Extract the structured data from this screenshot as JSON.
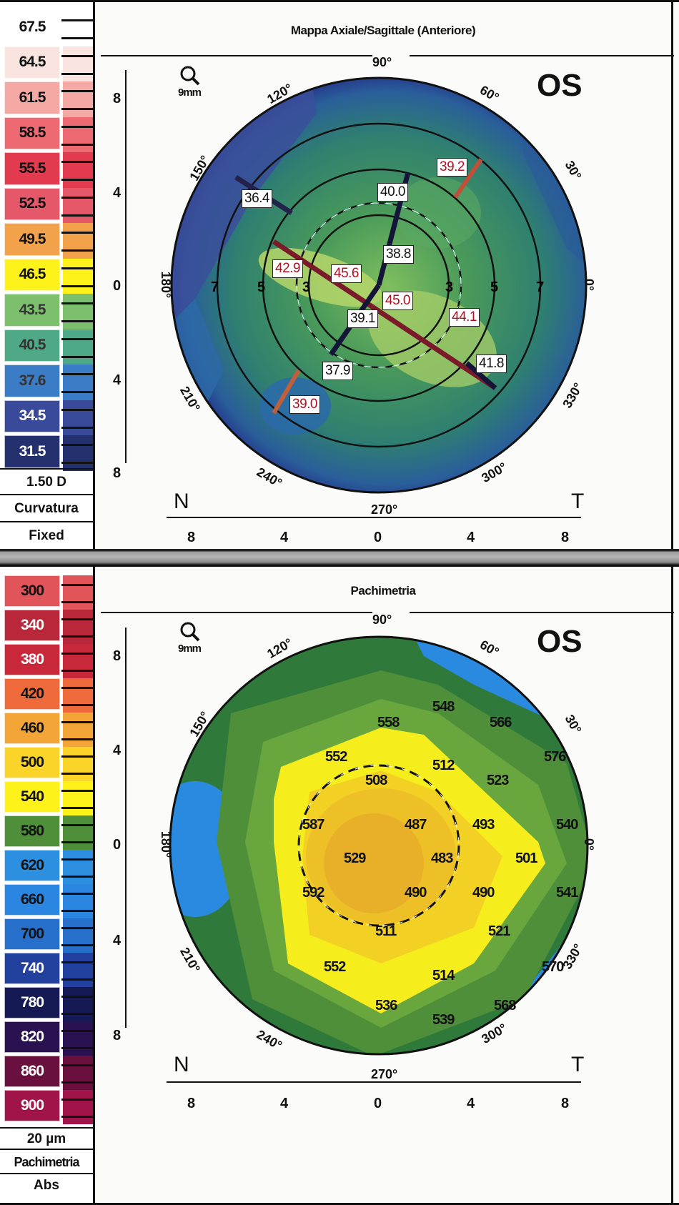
{
  "chart_data": [
    {
      "type": "heatmap",
      "title": "Mappa Axiale/Sagittale (Anteriore)",
      "eye": "OS",
      "zoom_label": "9mm",
      "scale": {
        "step": "1.50 D",
        "mode": "Curvatura",
        "scale_type": "Fixed",
        "ticks": [
          "67.5",
          "64.5",
          "61.5",
          "58.5",
          "55.5",
          "52.5",
          "49.5",
          "46.5",
          "43.5",
          "40.5",
          "37.6",
          "34.5",
          "31.5"
        ]
      },
      "angle_labels": [
        "90°",
        "120°",
        "150°",
        "180°",
        "210°",
        "240°",
        "270°",
        "300°",
        "330°",
        "0°",
        "30°",
        "60°"
      ],
      "ring_labels": [
        "7",
        "5",
        "3",
        "3",
        "5",
        "7"
      ],
      "axis_y_ticks": [
        "8",
        "4",
        "0",
        "4",
        "8"
      ],
      "axis_x_ticks": [
        "8",
        "4",
        "0",
        "4",
        "8"
      ],
      "orientation": {
        "left": "N",
        "right": "T"
      },
      "meridian_values": [
        {
          "label": "36.4",
          "color": "black"
        },
        {
          "label": "40.0",
          "color": "black"
        },
        {
          "label": "39.2",
          "color": "red"
        },
        {
          "label": "38.8",
          "color": "black"
        },
        {
          "label": "42.9",
          "color": "red"
        },
        {
          "label": "45.6",
          "color": "red"
        },
        {
          "label": "45.0",
          "color": "red"
        },
        {
          "label": "44.1",
          "color": "red"
        },
        {
          "label": "39.1",
          "color": "black"
        },
        {
          "label": "37.9",
          "color": "black"
        },
        {
          "label": "41.8",
          "color": "black"
        },
        {
          "label": "39.0",
          "color": "red"
        }
      ]
    },
    {
      "type": "heatmap",
      "title": "Pachimetria",
      "eye": "OS",
      "zoom_label": "9mm",
      "scale": {
        "step": "20 µm",
        "mode": "Pachimetria",
        "scale_type": "Abs",
        "ticks": [
          "300",
          "340",
          "380",
          "420",
          "460",
          "500",
          "540",
          "580",
          "620",
          "660",
          "700",
          "740",
          "780",
          "820",
          "860",
          "900"
        ]
      },
      "angle_labels": [
        "90°",
        "120°",
        "150°",
        "180°",
        "210°",
        "240°",
        "270°",
        "300°",
        "330°",
        "0°",
        "30°",
        "60°"
      ],
      "axis_y_ticks": [
        "8",
        "4",
        "0",
        "4",
        "8"
      ],
      "axis_x_ticks": [
        "8",
        "4",
        "0",
        "4",
        "8"
      ],
      "orientation": {
        "left": "N",
        "right": "T"
      },
      "thickness_points": [
        {
          "label": "548",
          "x": 0,
          "y": 7
        },
        {
          "label": "558",
          "x": -2.4,
          "y": 6.5
        },
        {
          "label": "566",
          "x": 2.4,
          "y": 6.5
        },
        {
          "label": "552",
          "x": -4.6,
          "y": 4.5
        },
        {
          "label": "512",
          "x": 0,
          "y": 4.3
        },
        {
          "label": "576",
          "x": 4.6,
          "y": 4.5
        },
        {
          "label": "508",
          "x": -2.4,
          "y": 3.5
        },
        {
          "label": "523",
          "x": 2.4,
          "y": 3.5
        },
        {
          "label": "587",
          "x": -5.9,
          "y": 1.4
        },
        {
          "label": "487",
          "x": -1.2,
          "y": 1.6
        },
        {
          "label": "493",
          "x": 1.2,
          "y": 1.6
        },
        {
          "label": "540",
          "x": 5.9,
          "y": 1.4
        },
        {
          "label": "529",
          "x": -4.2,
          "y": 0
        },
        {
          "label": "483",
          "x": 0,
          "y": 0
        },
        {
          "label": "501",
          "x": 3.6,
          "y": 0
        },
        {
          "label": "592",
          "x": -5.9,
          "y": -1.4
        },
        {
          "label": "490",
          "x": -1.2,
          "y": -1.4
        },
        {
          "label": "490",
          "x": 1.2,
          "y": -1.4
        },
        {
          "label": "541",
          "x": 5.9,
          "y": -1.4
        },
        {
          "label": "511",
          "x": -2.4,
          "y": -3.2
        },
        {
          "label": "521",
          "x": 2.4,
          "y": -3.2
        },
        {
          "label": "552",
          "x": -4.6,
          "y": -4.3
        },
        {
          "label": "514",
          "x": 0,
          "y": -4.3
        },
        {
          "label": "570",
          "x": 4.6,
          "y": -4.3
        },
        {
          "label": "536",
          "x": -2.4,
          "y": -6.2
        },
        {
          "label": "568",
          "x": 2.4,
          "y": -6.2
        },
        {
          "label": "539",
          "x": 0,
          "y": -6.8
        }
      ]
    }
  ],
  "top": {
    "title": "Mappa Axiale/Sagittale (Anteriore)",
    "eye": "OS",
    "zoom_label": "9mm",
    "legend": [
      {
        "label": "67.5",
        "bg": "#ffffff",
        "fg": "#111111"
      },
      {
        "label": "64.5",
        "bg": "#f9e4df",
        "fg": "#111111"
      },
      {
        "label": "61.5",
        "bg": "#f4a9a4",
        "fg": "#111111"
      },
      {
        "label": "58.5",
        "bg": "#ee6a72",
        "fg": "#111111"
      },
      {
        "label": "55.5",
        "bg": "#e23a4e",
        "fg": "#111111"
      },
      {
        "label": "52.5",
        "bg": "#e4586a",
        "fg": "#111111"
      },
      {
        "label": "49.5",
        "bg": "#f2a24a",
        "fg": "#111111"
      },
      {
        "label": "46.5",
        "bg": "#fff21a",
        "fg": "#111111"
      },
      {
        "label": "43.5",
        "bg": "#7cc06e",
        "fg": "#333333"
      },
      {
        "label": "40.5",
        "bg": "#4fa886",
        "fg": "#333333"
      },
      {
        "label": "37.6",
        "bg": "#3a7cc6",
        "fg": "#333333"
      },
      {
        "label": "34.5",
        "bg": "#3a4a9a",
        "fg": "#ffffff"
      },
      {
        "label": "31.5",
        "bg": "#25306e",
        "fg": "#ffffff"
      }
    ],
    "step": "1.50 D",
    "mode": "Curvatura",
    "scale_type": "Fixed",
    "deg": {
      "a90": "90°",
      "a120": "120°",
      "a150": "150°",
      "a180": "180°",
      "a210": "210°",
      "a240": "240°",
      "a270": "270°",
      "a300": "300°",
      "a330": "330°",
      "a0": "0°",
      "a30": "30°",
      "a60": "60°"
    },
    "rings": {
      "l7": "7",
      "l5": "5",
      "l3": "3",
      "r3": "3",
      "r5": "5",
      "r7": "7"
    },
    "yticks": {
      "t1": "8",
      "t2": "4",
      "t3": "0",
      "t4": "4",
      "t5": "8"
    },
    "xticks": {
      "t1": "8",
      "t2": "4",
      "t3": "0",
      "t4": "4",
      "t5": "8"
    },
    "n": "N",
    "t": "T",
    "values": {
      "v1": "36.4",
      "v2": "40.0",
      "v3": "39.2",
      "v4": "38.8",
      "v5": "42.9",
      "v6": "45.6",
      "v7": "45.0",
      "v8": "44.1",
      "v9": "39.1",
      "v10": "37.9",
      "v11": "41.8",
      "v12": "39.0"
    }
  },
  "bottom": {
    "title": "Pachimetria",
    "eye": "OS",
    "zoom_label": "9mm",
    "legend": [
      {
        "label": "300",
        "bg": "#e0545a",
        "fg": "#111111"
      },
      {
        "label": "340",
        "bg": "#b8283a",
        "fg": "#ffffff"
      },
      {
        "label": "380",
        "bg": "#c8283a",
        "fg": "#ffffff"
      },
      {
        "label": "420",
        "bg": "#ee6a3a",
        "fg": "#111111"
      },
      {
        "label": "460",
        "bg": "#f3a538",
        "fg": "#111111"
      },
      {
        "label": "500",
        "bg": "#fad428",
        "fg": "#111111"
      },
      {
        "label": "540",
        "bg": "#fff21a",
        "fg": "#111111"
      },
      {
        "label": "580",
        "bg": "#4f8f3a",
        "fg": "#111111"
      },
      {
        "label": "620",
        "bg": "#2c8fe0",
        "fg": "#111111"
      },
      {
        "label": "660",
        "bg": "#2a86e0",
        "fg": "#111111"
      },
      {
        "label": "700",
        "bg": "#2670cc",
        "fg": "#111111"
      },
      {
        "label": "740",
        "bg": "#22409e",
        "fg": "#ffffff"
      },
      {
        "label": "780",
        "bg": "#151a55",
        "fg": "#ffffff"
      },
      {
        "label": "820",
        "bg": "#2a1250",
        "fg": "#ffffff"
      },
      {
        "label": "860",
        "bg": "#6a103e",
        "fg": "#ffffff"
      },
      {
        "label": "900",
        "bg": "#a0144a",
        "fg": "#ffffff"
      }
    ],
    "step": "20 µm",
    "mode": "Pachimetria",
    "scale_type": "Abs",
    "deg": {
      "a90": "90°",
      "a120": "120°",
      "a150": "150°",
      "a180": "180°",
      "a210": "210°",
      "a240": "240°",
      "a270": "270°",
      "a300": "300°",
      "a330": "330°",
      "a0": "0°",
      "a30": "30°",
      "a60": "60°"
    },
    "yticks": {
      "t1": "8",
      "t2": "4",
      "t3": "0",
      "t4": "4",
      "t5": "8"
    },
    "xticks": {
      "t1": "8",
      "t2": "4",
      "t3": "0",
      "t4": "4",
      "t5": "8"
    },
    "n": "N",
    "t": "T",
    "values": {
      "p1": "548",
      "p2": "558",
      "p3": "566",
      "p4": "552",
      "p5": "512",
      "p6": "576",
      "p7": "508",
      "p8": "523",
      "p9": "587",
      "p10": "487",
      "p11": "493",
      "p12": "540",
      "p13": "529",
      "p14": "483",
      "p15": "501",
      "p16": "592",
      "p17": "490",
      "p18": "490",
      "p19": "541",
      "p20": "511",
      "p21": "521",
      "p22": "552",
      "p23": "514",
      "p24": "570",
      "p25": "536",
      "p26": "568",
      "p27": "539"
    }
  }
}
